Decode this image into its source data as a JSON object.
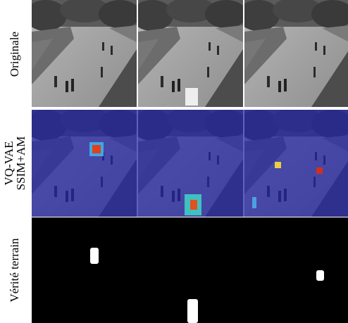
{
  "rows": [
    {
      "label": [
        "Originale"
      ]
    },
    {
      "label": [
        "VQ-VAE",
        "SSIM+AM"
      ]
    },
    {
      "label": [
        "Vérité terrain"
      ]
    }
  ]
}
